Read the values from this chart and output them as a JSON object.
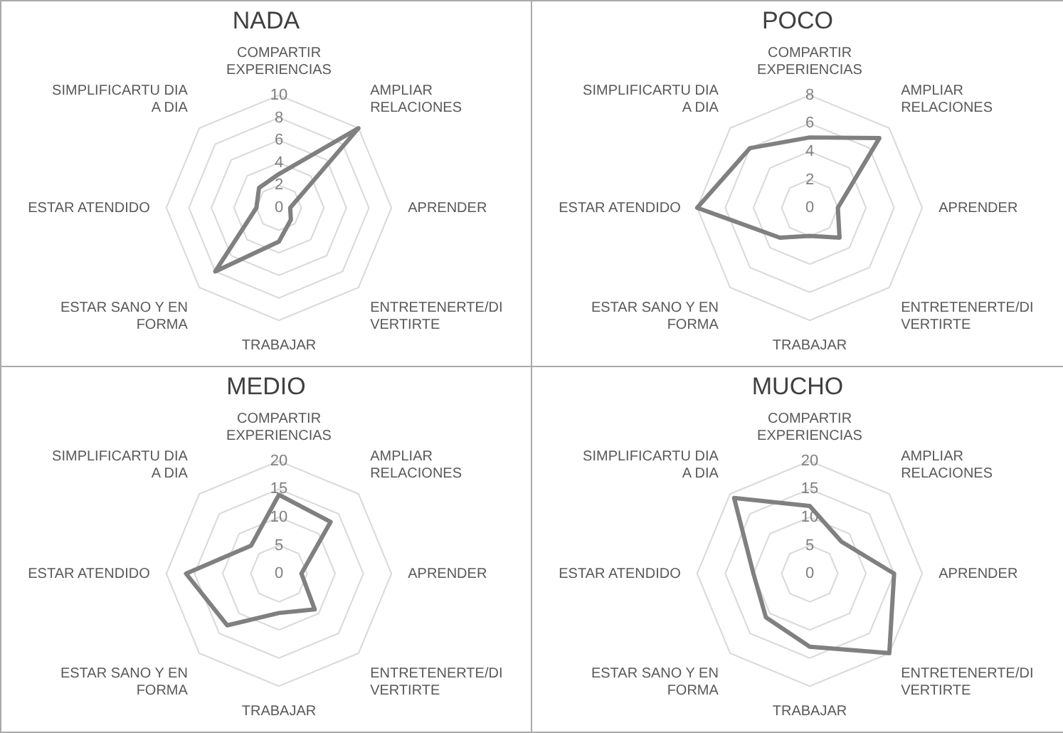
{
  "chart_data": [
    {
      "type": "radar",
      "title": "NADA",
      "categories": [
        "COMPARTIR EXPERIENCIAS",
        "AMPLIAR RELACIONES",
        "APRENDER",
        "ENTRETENERTE/DIVERTIRTE",
        "TRABAJAR",
        "ESTAR SANO Y EN FORMA",
        "ESTAR ATENDIDO",
        "SIMPLIFICARTU DIA A DIA"
      ],
      "series": [
        {
          "color": "#808080",
          "values": [
            3,
            10,
            1,
            1.5,
            3,
            8,
            2,
            2.5
          ]
        }
      ],
      "ylim": [
        0,
        10
      ],
      "yticks": [
        0,
        2,
        4,
        6,
        8,
        10
      ],
      "grid": true
    },
    {
      "type": "radar",
      "title": "POCO",
      "categories": [
        "COMPARTIR EXPERIENCIAS",
        "AMPLIAR RELACIONES",
        "APRENDER",
        "ENTRETENERTE/DIVERTIRTE",
        "TRABAJAR",
        "ESTAR SANO Y EN FORMA",
        "ESTAR ATENDIDO",
        "SIMPLIFICARTU DIA A DIA"
      ],
      "series": [
        {
          "color": "#808080",
          "values": [
            5,
            7,
            2,
            3,
            2,
            3,
            8,
            6
          ]
        }
      ],
      "ylim": [
        0,
        8
      ],
      "yticks": [
        0,
        2,
        4,
        6,
        8
      ],
      "grid": true
    },
    {
      "type": "radar",
      "title": "MEDIO",
      "categories": [
        "COMPARTIR EXPERIENCIAS",
        "AMPLIAR RELACIONES",
        "APRENDER",
        "ENTRETENERTE/DIVERTIRTE",
        "TRABAJAR",
        "ESTAR SANO Y EN FORMA",
        "ESTAR ATENDIDO",
        "SIMPLIFICARTU DIA A DIA"
      ],
      "series": [
        {
          "color": "#808080",
          "values": [
            14,
            13,
            4,
            9,
            7,
            13,
            16.5,
            7
          ]
        }
      ],
      "ylim": [
        0,
        20
      ],
      "yticks": [
        0,
        5,
        10,
        15,
        20
      ],
      "grid": true
    },
    {
      "type": "radar",
      "title": "MUCHO",
      "categories": [
        "COMPARTIR EXPERIENCIAS",
        "AMPLIAR RELACIONES",
        "APRENDER",
        "ENTRETENERTE/DIVERTIRTE",
        "TRABAJAR",
        "ESTAR SANO Y EN FORMA",
        "ESTAR ATENDIDO",
        "SIMPLIFICARTU DIA A DIA"
      ],
      "series": [
        {
          "color": "#808080",
          "values": [
            12,
            8,
            15,
            20,
            13,
            11,
            10,
            19
          ]
        }
      ],
      "ylim": [
        0,
        20
      ],
      "yticks": [
        0,
        5,
        10,
        15,
        20
      ],
      "grid": true
    }
  ]
}
